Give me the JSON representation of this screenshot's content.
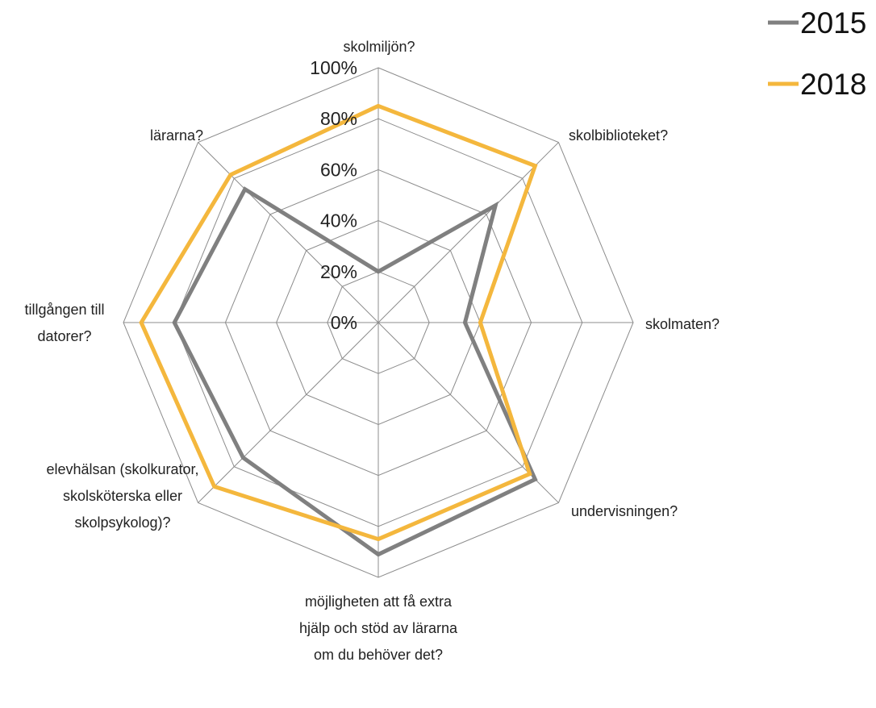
{
  "chart_data": {
    "type": "radar",
    "categories": [
      "skolmiljön?",
      "skolbiblioteket?",
      "skolmaten?",
      "undervisningen?",
      "möjligheten att få extra hjälp och stöd av lärarna om du behöver det?",
      "elevhälsan (skolkurator, skolsköterska eller skolpsykolog)?",
      "tillgången till datorer?",
      "lärarna?"
    ],
    "series": [
      {
        "name": "2015",
        "color": "#808080",
        "values": [
          20,
          65,
          34,
          87,
          91,
          75,
          80,
          74
        ]
      },
      {
        "name": "2018",
        "color": "#f4b73d",
        "values": [
          85,
          87,
          40,
          84,
          85,
          91,
          93,
          82
        ]
      }
    ],
    "ylim": [
      0,
      100
    ],
    "yticks": [
      {
        "value": 0,
        "label": "0%"
      },
      {
        "value": 20,
        "label": "20%"
      },
      {
        "value": 40,
        "label": "40%"
      },
      {
        "value": 60,
        "label": "60%"
      },
      {
        "value": 80,
        "label": "80%"
      },
      {
        "value": 100,
        "label": "100%"
      }
    ],
    "legend": "top-right"
  }
}
